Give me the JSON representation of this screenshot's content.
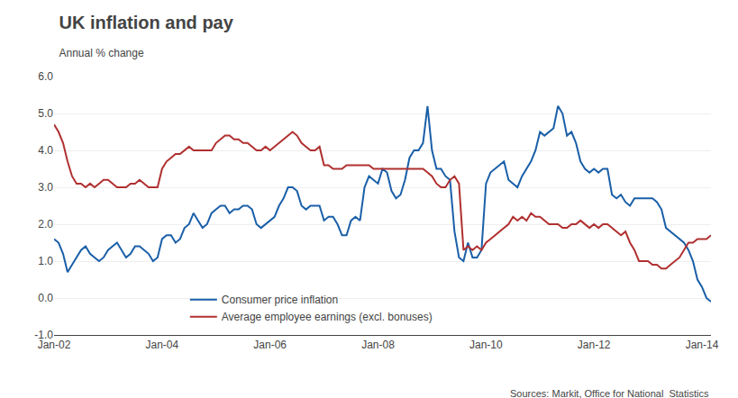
{
  "chart_data": {
    "type": "line",
    "title": "UK inflation and pay",
    "subtitle": "Annual % change",
    "annotations": [
      "Sources: Markit, Office for National  Statistics"
    ],
    "categories": [
      "Jan-02",
      null,
      null,
      null,
      null,
      null,
      null,
      null,
      null,
      null,
      null,
      null,
      null,
      null,
      null,
      null,
      null,
      null,
      null,
      null,
      null,
      null,
      null,
      null,
      "Jan-04",
      null,
      null,
      null,
      null,
      null,
      null,
      null,
      null,
      null,
      null,
      null,
      null,
      null,
      null,
      null,
      null,
      null,
      null,
      null,
      null,
      null,
      null,
      null,
      "Jan-06",
      null,
      null,
      null,
      null,
      null,
      null,
      null,
      null,
      null,
      null,
      null,
      null,
      null,
      null,
      null,
      null,
      null,
      null,
      null,
      null,
      null,
      null,
      null,
      "Jan-08",
      null,
      null,
      null,
      null,
      null,
      null,
      null,
      null,
      null,
      null,
      null,
      null,
      null,
      null,
      null,
      null,
      null,
      null,
      null,
      null,
      null,
      null,
      null,
      "Jan-10",
      null,
      null,
      null,
      null,
      null,
      null,
      null,
      null,
      null,
      null,
      null,
      null,
      null,
      null,
      null,
      null,
      null,
      null,
      null,
      null,
      null,
      null,
      null,
      "Jan-12",
      null,
      null,
      null,
      null,
      null,
      null,
      null,
      null,
      null,
      null,
      null,
      null,
      null,
      null,
      null,
      null,
      null,
      null,
      null,
      null,
      null,
      null,
      null,
      "Jan-14",
      null,
      null
    ],
    "series": [
      {
        "name": "Consumer price inflation",
        "color": "#1a5fa8",
        "values": [
          1.6,
          1.5,
          1.2,
          0.7,
          0.9,
          1.1,
          1.3,
          1.4,
          1.2,
          1.1,
          1.0,
          1.1,
          1.3,
          1.4,
          1.5,
          1.3,
          1.1,
          1.2,
          1.4,
          1.4,
          1.3,
          1.2,
          1.0,
          1.1,
          1.6,
          1.7,
          1.7,
          1.5,
          1.6,
          1.9,
          2.0,
          2.3,
          2.1,
          1.9,
          2.0,
          2.3,
          2.4,
          2.5,
          2.5,
          2.3,
          2.4,
          2.4,
          2.5,
          2.5,
          2.4,
          2.0,
          1.9,
          2.0,
          2.1,
          2.2,
          2.5,
          2.7,
          3.0,
          3.0,
          2.9,
          2.5,
          2.4,
          2.5,
          2.5,
          2.5,
          2.1,
          2.2,
          2.2,
          2.0,
          1.7,
          1.7,
          2.1,
          2.2,
          2.1,
          3.0,
          3.3,
          3.2,
          3.1,
          3.5,
          3.4,
          2.9,
          2.7,
          2.8,
          3.2,
          3.8,
          4.0,
          4.0,
          4.2,
          5.2,
          4.0,
          3.5,
          3.5,
          3.3,
          3.2,
          1.8,
          1.1,
          1.0,
          1.5,
          1.1,
          1.1,
          1.3,
          3.1,
          3.4,
          3.5,
          3.6,
          3.7,
          3.2,
          3.1,
          3.0,
          3.3,
          3.5,
          3.7,
          4.0,
          4.5,
          4.4,
          4.5,
          4.6,
          5.2,
          5.0,
          4.4,
          4.5,
          4.2,
          3.7,
          3.5,
          3.4,
          3.5,
          3.4,
          3.5,
          3.5,
          2.8,
          2.7,
          2.8,
          2.6,
          2.5,
          2.7,
          2.7,
          2.7,
          2.7,
          2.7,
          2.6,
          2.4,
          1.9,
          1.8,
          1.7,
          1.6,
          1.5,
          1.3,
          1.0,
          0.5,
          0.3,
          0.0,
          -0.1
        ]
      },
      {
        "name": "Average employee earnings (excl. bonuses)",
        "color": "#b03030",
        "values": [
          4.7,
          4.5,
          4.2,
          3.7,
          3.3,
          3.1,
          3.1,
          3.0,
          3.1,
          3.0,
          3.1,
          3.2,
          3.2,
          3.1,
          3.0,
          3.0,
          3.0,
          3.1,
          3.1,
          3.2,
          3.1,
          3.0,
          3.0,
          3.0,
          3.5,
          3.7,
          3.8,
          3.9,
          3.9,
          4.0,
          4.1,
          4.0,
          4.0,
          4.0,
          4.0,
          4.0,
          4.2,
          4.3,
          4.4,
          4.4,
          4.3,
          4.3,
          4.2,
          4.2,
          4.1,
          4.0,
          4.0,
          4.1,
          4.0,
          4.1,
          4.2,
          4.3,
          4.4,
          4.5,
          4.4,
          4.2,
          4.1,
          4.0,
          4.0,
          4.1,
          3.6,
          3.6,
          3.5,
          3.5,
          3.5,
          3.6,
          3.6,
          3.6,
          3.6,
          3.6,
          3.6,
          3.5,
          3.5,
          3.5,
          3.5,
          3.5,
          3.5,
          3.5,
          3.5,
          3.5,
          3.5,
          3.5,
          3.5,
          3.4,
          3.3,
          3.1,
          3.0,
          3.0,
          3.2,
          3.3,
          3.1,
          1.3,
          1.4,
          1.3,
          1.4,
          1.3,
          1.5,
          1.6,
          1.7,
          1.8,
          1.9,
          2.0,
          2.2,
          2.1,
          2.2,
          2.1,
          2.3,
          2.2,
          2.2,
          2.1,
          2.0,
          2.0,
          2.0,
          1.9,
          1.9,
          2.0,
          2.0,
          2.1,
          2.0,
          1.9,
          2.0,
          1.9,
          2.0,
          2.0,
          1.9,
          1.8,
          1.7,
          1.8,
          1.5,
          1.3,
          1.0,
          1.0,
          1.0,
          0.9,
          0.9,
          0.8,
          0.8,
          0.9,
          1.0,
          1.1,
          1.3,
          1.5,
          1.5,
          1.6,
          1.6,
          1.6,
          1.7
        ]
      }
    ],
    "ylim": [
      -1.0,
      6.0
    ],
    "yticks": [
      {
        "value": -1.0,
        "label": "-1.0"
      },
      {
        "value": 0.0,
        "label": "0.0"
      },
      {
        "value": 1.0,
        "label": "1.0"
      },
      {
        "value": 2.0,
        "label": "2.0"
      },
      {
        "value": 3.0,
        "label": "3.0"
      },
      {
        "value": 4.0,
        "label": "4.0"
      },
      {
        "value": 5.0,
        "label": "5.0"
      },
      {
        "value": 6.0,
        "label": "6.0"
      }
    ],
    "grid": true,
    "legend": "lower left"
  }
}
